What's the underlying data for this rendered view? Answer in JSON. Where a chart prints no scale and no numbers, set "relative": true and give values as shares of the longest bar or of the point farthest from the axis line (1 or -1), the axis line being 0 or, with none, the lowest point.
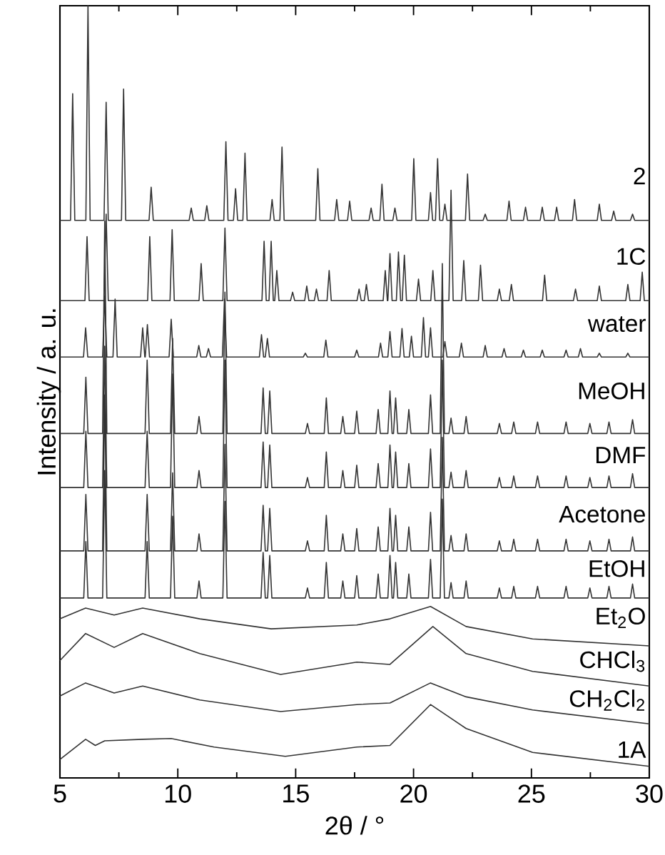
{
  "chart_data": {
    "type": "line",
    "xlabel": "2θ / °",
    "ylabel": "Intensity / a. u.",
    "relative": true,
    "marker": "none",
    "line_style": "solid",
    "xlim": [
      5,
      30
    ],
    "xticks": [
      5,
      {
        "value": 7.5,
        "label": null
      },
      10,
      {
        "value": 12.5,
        "label": null
      },
      15,
      {
        "value": 17.5,
        "label": null
      },
      20,
      {
        "value": 22.5,
        "label": null
      },
      25,
      {
        "value": 27.5,
        "label": null
      },
      30
    ],
    "x": [
      5,
      6.01,
      6.1,
      6.19,
      6.81,
      6.9,
      6.99,
      8.61,
      8.7,
      8.79,
      9.69,
      9.78,
      9.87,
      10.81,
      10.9,
      10.99,
      11.91,
      12.0,
      12.09,
      13.53,
      13.62,
      13.71,
      13.81,
      13.9,
      13.99,
      15.41,
      15.5,
      15.59,
      16.21,
      16.3,
      16.39,
      16.91,
      17.0,
      17.09,
      17.5,
      17.59,
      17.68,
      18.41,
      18.5,
      18.59,
      18.91,
      19.0,
      19.09,
      19.15,
      19.24,
      19.33,
      19.71,
      19.8,
      19.89,
      20.63,
      20.72,
      20.81,
      21.13,
      21.22,
      21.31,
      21.5,
      21.59,
      21.68,
      22.14,
      22.23,
      22.32,
      23.55,
      23.64,
      23.73,
      24.16,
      24.25,
      24.34,
      25.17,
      25.26,
      25.35,
      26.38,
      26.47,
      26.56,
      27.39,
      27.48,
      27.57,
      28.2,
      28.29,
      28.38,
      29.2,
      29.29,
      29.38,
      30
    ],
    "series": [
      {
        "name": "2",
        "color": "#333333",
        "x": [
          5,
          5.45,
          5.54,
          5.63,
          6.1,
          6.19,
          6.28,
          6.87,
          6.96,
          7.05,
          7.61,
          7.7,
          7.79,
          8.78,
          8.87,
          8.96,
          10.48,
          10.57,
          10.66,
          11.14,
          11.23,
          11.32,
          11.95,
          12.04,
          12.13,
          12.36,
          12.45,
          12.54,
          12.76,
          12.85,
          12.94,
          13.91,
          14.0,
          14.09,
          14.33,
          14.42,
          14.51,
          15.85,
          15.94,
          16.03,
          16.65,
          16.74,
          16.83,
          17.2,
          17.29,
          17.38,
          18.11,
          18.2,
          18.29,
          18.57,
          18.66,
          18.75,
          19.12,
          19.21,
          19.3,
          19.92,
          20.01,
          20.1,
          20.63,
          20.72,
          20.81,
          20.93,
          21.02,
          21.11,
          21.24,
          21.33,
          21.42,
          22.2,
          22.29,
          22.38,
          22.95,
          23.04,
          23.13,
          23.96,
          24.05,
          24.14,
          24.66,
          24.75,
          24.84,
          25.37,
          25.46,
          25.55,
          25.98,
          26.07,
          26.16,
          26.74,
          26.83,
          26.92,
          27.79,
          27.88,
          27.97,
          28.4,
          28.49,
          28.58,
          29.2,
          29.29,
          29.38,
          30
        ],
        "values": [
          0.722,
          0.722,
          0.886,
          0.722,
          0.722,
          1.0,
          0.722,
          0.722,
          0.875,
          0.722,
          0.722,
          0.892,
          0.722,
          0.722,
          0.765,
          0.722,
          0.722,
          0.738,
          0.722,
          0.722,
          0.741,
          0.722,
          0.722,
          0.824,
          0.722,
          0.722,
          0.763,
          0.722,
          0.722,
          0.809,
          0.722,
          0.722,
          0.749,
          0.722,
          0.722,
          0.817,
          0.722,
          0.722,
          0.789,
          0.722,
          0.722,
          0.749,
          0.722,
          0.722,
          0.747,
          0.722,
          0.722,
          0.738,
          0.722,
          0.722,
          0.769,
          0.722,
          0.722,
          0.738,
          0.722,
          0.722,
          0.802,
          0.722,
          0.722,
          0.758,
          0.722,
          0.722,
          0.802,
          0.722,
          0.722,
          0.743,
          0.722,
          0.722,
          0.782,
          0.722,
          0.722,
          0.73,
          0.722,
          0.722,
          0.747,
          0.722,
          0.722,
          0.739,
          0.722,
          0.722,
          0.739,
          0.722,
          0.722,
          0.739,
          0.722,
          0.722,
          0.749,
          0.722,
          0.722,
          0.743,
          0.722,
          0.722,
          0.734,
          0.722,
          0.722,
          0.73,
          0.722,
          0.722
        ]
      },
      {
        "name": "1C",
        "color": "#333333",
        "x": [
          5,
          6.06,
          6.15,
          6.24,
          6.87,
          6.96,
          7.05,
          8.72,
          8.81,
          8.9,
          9.67,
          9.76,
          9.85,
          10.9,
          10.99,
          11.08,
          11.91,
          12.0,
          12.09,
          13.57,
          13.66,
          13.75,
          13.87,
          13.96,
          14.05,
          14.11,
          14.2,
          14.29,
          14.78,
          14.87,
          14.96,
          15.38,
          15.47,
          15.56,
          15.79,
          15.88,
          15.97,
          16.33,
          16.42,
          16.51,
          17.6,
          17.69,
          17.78,
          17.91,
          18.0,
          18.09,
          18.71,
          18.8,
          18.89,
          18.91,
          19.0,
          19.09,
          19.27,
          19.36,
          19.45,
          19.52,
          19.61,
          19.7,
          20.12,
          20.21,
          20.3,
          20.73,
          20.82,
          20.91,
          21.5,
          21.59,
          21.68,
          22.04,
          22.13,
          22.22,
          22.75,
          22.84,
          22.93,
          23.55,
          23.64,
          23.73,
          24.06,
          24.15,
          24.24,
          25.47,
          25.56,
          25.65,
          26.78,
          26.87,
          26.96,
          27.79,
          27.88,
          27.97,
          29.0,
          29.09,
          29.18,
          29.61,
          29.7,
          29.79,
          30
        ],
        "values": [
          0.618,
          0.618,
          0.701,
          0.618,
          0.618,
          0.73,
          0.618,
          0.618,
          0.701,
          0.618,
          0.618,
          0.71,
          0.618,
          0.618,
          0.666,
          0.618,
          0.618,
          0.712,
          0.618,
          0.618,
          0.695,
          0.618,
          0.618,
          0.695,
          0.618,
          0.618,
          0.657,
          0.618,
          0.618,
          0.629,
          0.618,
          0.618,
          0.637,
          0.618,
          0.618,
          0.633,
          0.618,
          0.618,
          0.657,
          0.618,
          0.618,
          0.633,
          0.618,
          0.618,
          0.639,
          0.618,
          0.618,
          0.657,
          0.618,
          0.618,
          0.679,
          0.618,
          0.618,
          0.681,
          0.618,
          0.618,
          0.677,
          0.618,
          0.618,
          0.646,
          0.618,
          0.618,
          0.657,
          0.618,
          0.618,
          0.761,
          0.618,
          0.618,
          0.67,
          0.618,
          0.618,
          0.664,
          0.618,
          0.618,
          0.633,
          0.618,
          0.618,
          0.639,
          0.618,
          0.618,
          0.651,
          0.618,
          0.618,
          0.633,
          0.618,
          0.618,
          0.637,
          0.618,
          0.618,
          0.639,
          0.618,
          0.618,
          0.655,
          0.618,
          0.618
        ]
      },
      {
        "name": "water",
        "color": "#333333",
        "x": [
          5,
          6.0,
          6.09,
          6.18,
          6.81,
          6.9,
          6.99,
          7.25,
          7.34,
          7.43,
          8.42,
          8.51,
          8.6,
          8.62,
          8.71,
          8.8,
          9.63,
          9.72,
          9.81,
          10.8,
          10.89,
          10.98,
          11.21,
          11.3,
          11.39,
          11.89,
          11.98,
          12.07,
          13.46,
          13.55,
          13.64,
          13.71,
          13.8,
          13.89,
          15.32,
          15.41,
          15.5,
          16.19,
          16.28,
          16.37,
          17.5,
          17.59,
          17.68,
          18.51,
          18.6,
          18.69,
          18.91,
          19.0,
          19.09,
          19.42,
          19.51,
          19.6,
          19.82,
          19.91,
          20.0,
          20.33,
          20.42,
          20.51,
          20.63,
          20.72,
          20.81,
          21.24,
          21.33,
          21.42,
          21.94,
          22.03,
          22.12,
          22.95,
          23.04,
          23.13,
          23.75,
          23.84,
          23.93,
          24.57,
          24.66,
          24.75,
          25.37,
          25.46,
          25.55,
          26.38,
          26.47,
          26.56,
          26.99,
          27.08,
          27.17,
          27.79,
          27.88,
          27.97,
          29.0,
          29.09,
          29.18,
          30
        ],
        "values": [
          0.545,
          0.545,
          0.583,
          0.545,
          0.545,
          0.624,
          0.545,
          0.545,
          0.62,
          0.545,
          0.545,
          0.583,
          0.545,
          0.545,
          0.587,
          0.545,
          0.545,
          0.594,
          0.545,
          0.545,
          0.56,
          0.545,
          0.545,
          0.556,
          0.545,
          0.545,
          0.62,
          0.545,
          0.545,
          0.574,
          0.545,
          0.545,
          0.569,
          0.545,
          0.545,
          0.55,
          0.545,
          0.545,
          0.567,
          0.545,
          0.545,
          0.554,
          0.545,
          0.545,
          0.563,
          0.545,
          0.545,
          0.578,
          0.545,
          0.545,
          0.582,
          0.545,
          0.545,
          0.572,
          0.545,
          0.545,
          0.596,
          0.545,
          0.545,
          0.583,
          0.545,
          0.545,
          0.565,
          0.545,
          0.545,
          0.563,
          0.545,
          0.545,
          0.56,
          0.545,
          0.545,
          0.556,
          0.545,
          0.545,
          0.554,
          0.545,
          0.545,
          0.554,
          0.545,
          0.545,
          0.554,
          0.545,
          0.545,
          0.556,
          0.545,
          0.545,
          0.55,
          0.545,
          0.545,
          0.55,
          0.545,
          0.545
        ]
      },
      {
        "name": "MeOH",
        "color": "#333333",
        "values": [
          0.446,
          0.446,
          0.519,
          0.446,
          0.446,
          0.721,
          0.446,
          0.446,
          0.541,
          0.446,
          0.446,
          0.569,
          0.446,
          0.446,
          0.468,
          0.446,
          0.446,
          0.629,
          0.446,
          0.446,
          0.505,
          0.446,
          0.446,
          0.501,
          0.446,
          0.446,
          0.459,
          0.446,
          0.446,
          0.492,
          0.446,
          0.446,
          0.468,
          0.446,
          0.446,
          0.475,
          0.446,
          0.446,
          0.477,
          0.446,
          0.446,
          0.501,
          0.446,
          0.446,
          0.492,
          0.446,
          0.446,
          0.477,
          0.446,
          0.446,
          0.496,
          0.446,
          0.446,
          0.666,
          0.446,
          0.446,
          0.466,
          0.446,
          0.446,
          0.468,
          0.446,
          0.446,
          0.459,
          0.446,
          0.446,
          0.461,
          0.446,
          0.446,
          0.461,
          0.446,
          0.446,
          0.461,
          0.446,
          0.446,
          0.459,
          0.446,
          0.446,
          0.461,
          0.446,
          0.446,
          0.464,
          0.446,
          0.446
        ]
      },
      {
        "name": "DMF",
        "color": "#333333",
        "values": [
          0.376,
          0.376,
          0.449,
          0.376,
          0.376,
          0.559,
          0.376,
          0.376,
          0.449,
          0.376,
          0.376,
          0.523,
          0.376,
          0.376,
          0.398,
          0.376,
          0.376,
          0.541,
          0.376,
          0.376,
          0.435,
          0.376,
          0.376,
          0.431,
          0.376,
          0.376,
          0.389,
          0.376,
          0.376,
          0.422,
          0.376,
          0.376,
          0.398,
          0.376,
          0.376,
          0.405,
          0.376,
          0.376,
          0.407,
          0.376,
          0.376,
          0.431,
          0.376,
          0.376,
          0.422,
          0.376,
          0.376,
          0.407,
          0.376,
          0.376,
          0.426,
          0.376,
          0.376,
          0.541,
          0.376,
          0.376,
          0.396,
          0.376,
          0.376,
          0.398,
          0.376,
          0.376,
          0.389,
          0.376,
          0.376,
          0.391,
          0.376,
          0.376,
          0.391,
          0.376,
          0.376,
          0.391,
          0.376,
          0.376,
          0.389,
          0.376,
          0.376,
          0.391,
          0.376,
          0.376,
          0.394,
          0.376,
          0.376
        ]
      },
      {
        "name": "Acetone",
        "color": "#333333",
        "values": [
          0.294,
          0.294,
          0.367,
          0.294,
          0.294,
          0.496,
          0.294,
          0.294,
          0.367,
          0.294,
          0.294,
          0.395,
          0.294,
          0.294,
          0.316,
          0.294,
          0.294,
          0.432,
          0.294,
          0.294,
          0.353,
          0.294,
          0.294,
          0.349,
          0.294,
          0.294,
          0.307,
          0.294,
          0.294,
          0.34,
          0.294,
          0.294,
          0.316,
          0.294,
          0.294,
          0.323,
          0.294,
          0.294,
          0.325,
          0.294,
          0.294,
          0.349,
          0.294,
          0.294,
          0.34,
          0.294,
          0.294,
          0.325,
          0.294,
          0.294,
          0.344,
          0.294,
          0.294,
          0.441,
          0.294,
          0.294,
          0.314,
          0.294,
          0.294,
          0.316,
          0.294,
          0.294,
          0.307,
          0.294,
          0.294,
          0.309,
          0.294,
          0.294,
          0.309,
          0.294,
          0.294,
          0.309,
          0.294,
          0.294,
          0.307,
          0.294,
          0.294,
          0.309,
          0.294,
          0.294,
          0.312,
          0.294,
          0.294
        ]
      },
      {
        "name": "EtOH",
        "color": "#333333",
        "values": [
          0.233,
          0.233,
          0.306,
          0.233,
          0.233,
          0.398,
          0.233,
          0.233,
          0.306,
          0.233,
          0.233,
          0.339,
          0.233,
          0.233,
          0.255,
          0.233,
          0.233,
          0.358,
          0.233,
          0.233,
          0.292,
          0.233,
          0.233,
          0.288,
          0.233,
          0.233,
          0.246,
          0.233,
          0.233,
          0.279,
          0.233,
          0.233,
          0.255,
          0.233,
          0.233,
          0.262,
          0.233,
          0.233,
          0.264,
          0.233,
          0.233,
          0.288,
          0.233,
          0.233,
          0.279,
          0.233,
          0.233,
          0.264,
          0.233,
          0.233,
          0.283,
          0.233,
          0.233,
          0.361,
          0.233,
          0.233,
          0.253,
          0.233,
          0.233,
          0.255,
          0.233,
          0.233,
          0.246,
          0.233,
          0.233,
          0.248,
          0.233,
          0.233,
          0.248,
          0.233,
          0.233,
          0.248,
          0.233,
          0.233,
          0.246,
          0.233,
          0.233,
          0.248,
          0.233,
          0.233,
          0.251,
          0.233,
          0.233
        ]
      },
      {
        "name": "Et$_{2}$O",
        "color": "#333333",
        "x": [
          5,
          6.09,
          7.3,
          8.51,
          10.93,
          13.96,
          17.59,
          19.0,
          20.72,
          22.23,
          25.05,
          30
        ],
        "values": [
          0.206,
          0.22,
          0.211,
          0.22,
          0.206,
          0.193,
          0.198,
          0.206,
          0.222,
          0.196,
          0.18,
          0.171
        ]
      },
      {
        "name": "CHCl$_{3}$",
        "color": "#333333",
        "x": [
          5,
          6.09,
          7.3,
          8.51,
          10.93,
          14.36,
          17.59,
          19.0,
          20.82,
          22.23,
          25.05,
          30
        ],
        "values": [
          0.152,
          0.187,
          0.169,
          0.187,
          0.161,
          0.134,
          0.15,
          0.147,
          0.196,
          0.161,
          0.138,
          0.119
        ]
      },
      {
        "name": "CH$_{2}$Cl$_{2}$",
        "color": "#333333",
        "x": [
          5,
          6.09,
          7.3,
          8.51,
          10.93,
          14.36,
          17.59,
          19.0,
          20.72,
          22.23,
          25.05,
          30
        ],
        "values": [
          0.106,
          0.123,
          0.11,
          0.119,
          0.101,
          0.086,
          0.095,
          0.097,
          0.123,
          0.105,
          0.088,
          0.07
        ]
      },
      {
        "name": "1A",
        "color": "#333333",
        "x": [
          5,
          6.09,
          6.5,
          6.9,
          8.51,
          9.72,
          11.54,
          14.56,
          17.59,
          19.0,
          20.72,
          22.23,
          25.05,
          30
        ],
        "values": [
          0.024,
          0.05,
          0.042,
          0.048,
          0.05,
          0.051,
          0.04,
          0.028,
          0.04,
          0.042,
          0.095,
          0.064,
          0.033,
          0.015
        ]
      }
    ]
  }
}
